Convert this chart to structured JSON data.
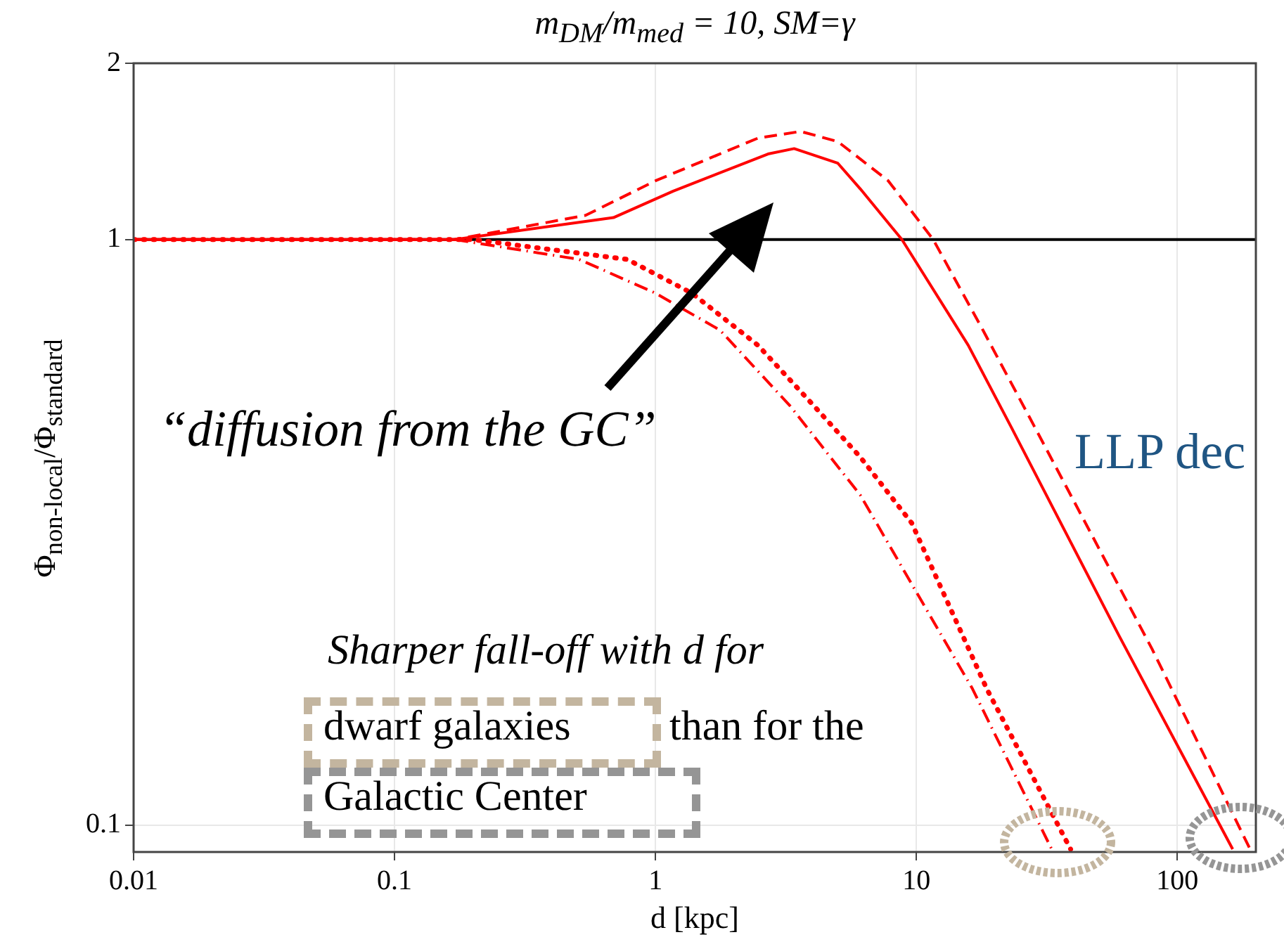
{
  "chart_data": {
    "type": "line",
    "title": "m$_{DM}$/m$_{med}$ = 10,    SM=γ",
    "xlabel": "d [kpc]",
    "ylabel": "Φ$_{non-local}$/Φ$_{standard}$",
    "log": "xy",
    "grid": true,
    "marker": "none",
    "xlim": [
      0.01,
      200
    ],
    "xticks": [
      0.01,
      0.1,
      1,
      10,
      100
    ],
    "ylim": [
      0.09,
      2
    ],
    "yticks": [
      0.1,
      1,
      2
    ],
    "ref_lines": [
      {
        "axis": "y",
        "value": 1,
        "color": "#000000"
      }
    ],
    "annotations": [
      "“diffusion from the GC”",
      "Sharper fall-off with d for",
      "dwarf galaxies",
      "than for the",
      "Galactic Center",
      "LLP dec"
    ],
    "series": [
      {
        "color": "#ff0000",
        "line_style": "solid",
        "x": [
          0.01,
          0.17,
          0.69,
          1.17,
          2.7,
          3.4,
          5,
          6.1,
          8.8,
          15.8,
          23,
          60,
          163
        ],
        "values": [
          1,
          1,
          1.09,
          1.21,
          1.4,
          1.43,
          1.35,
          1.22,
          1,
          0.66,
          0.48,
          0.21,
          0.091
        ]
      },
      {
        "color": "#ff0000",
        "line_style": "dashed",
        "x": [
          0.01,
          0.17,
          0.54,
          1,
          2.47,
          3.6,
          5,
          7.8,
          11.6,
          18,
          28.3,
          80,
          190
        ],
        "values": [
          1,
          1,
          1.1,
          1.26,
          1.49,
          1.53,
          1.47,
          1.26,
          1,
          0.7,
          0.48,
          0.2,
          0.091
        ]
      },
      {
        "color": "#ff0000",
        "line_style": "dotted",
        "x": [
          0.01,
          0.2,
          0.78,
          1.38,
          2.47,
          4.05,
          6.1,
          9.6,
          18.6,
          39
        ],
        "values": [
          1,
          1,
          0.925,
          0.81,
          0.66,
          0.52,
          0.425,
          0.328,
          0.171,
          0.091
        ]
      },
      {
        "color": "#ff0000",
        "line_style": "dashdot",
        "x": [
          0.01,
          0.17,
          0.51,
          1,
          1.77,
          3.28,
          6.1,
          9.6,
          16.4,
          33
        ],
        "values": [
          1,
          1,
          0.925,
          0.81,
          0.7,
          0.52,
          0.366,
          0.258,
          0.171,
          0.091
        ]
      }
    ]
  }
}
